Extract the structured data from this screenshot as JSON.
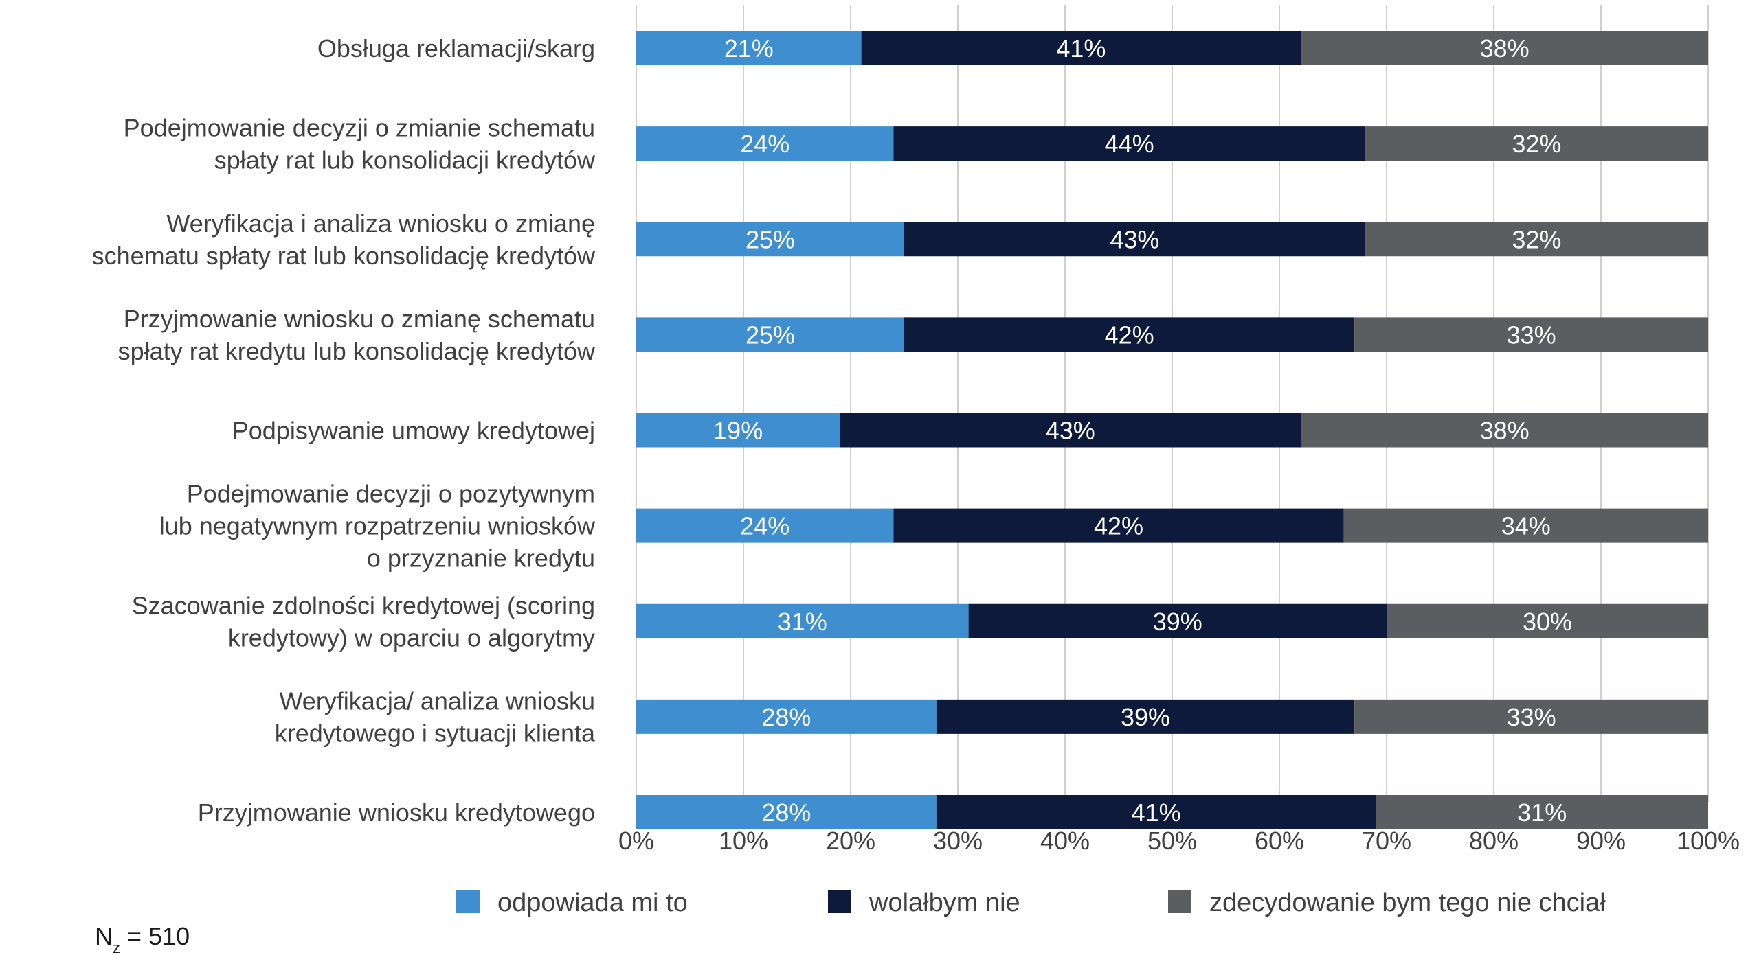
{
  "chart_data": {
    "type": "bar",
    "orientation": "horizontal",
    "stacked": true,
    "categories": [
      "Obsługa reklamacji/skarg",
      "Podejmowanie decyzji o zmianie schematu spłaty rat lub konsolidacji kredytów",
      "Weryfikacja i analiza wniosku o zmianę schematu spłaty rat lub konsolidację kredytów",
      "Przyjmowanie wniosku o zmianę schematu spłaty rat kredytu lub konsolidację kredytów",
      "Podpisywanie umowy kredytowej",
      "Podejmowanie decyzji o pozytywnym lub negatywnym rozpatrzeniu wniosków o przyznanie kredytu",
      "Szacowanie zdolności kredytowej (scoring kredytowy) w oparciu o algorytmy",
      "Weryfikacja/ analiza wniosku kredytowego i sytuacji klienta",
      "Przyjmowanie wniosku kredytowego"
    ],
    "category_lines": [
      [
        "Obsługa reklamacji/skarg"
      ],
      [
        "Podejmowanie decyzji o zmianie schematu",
        "spłaty rat lub konsolidacji kredytów"
      ],
      [
        "Weryfikacja i analiza wniosku o zmianę",
        "schematu spłaty rat lub konsolidację kredytów"
      ],
      [
        "Przyjmowanie wniosku o zmianę schematu",
        "spłaty rat kredytu lub konsolidację kredytów"
      ],
      [
        "Podpisywanie umowy kredytowej"
      ],
      [
        "Podejmowanie decyzji o pozytywnym",
        "lub negatywnym rozpatrzeniu wniosków",
        "o przyznanie kredytu"
      ],
      [
        "Szacowanie zdolności kredytowej (scoring",
        "kredytowy) w oparciu o algorytmy"
      ],
      [
        "Weryfikacja/ analiza wniosku",
        "kredytowego i sytuacji klienta"
      ],
      [
        "Przyjmowanie wniosku kredytowego"
      ]
    ],
    "series": [
      {
        "name": "odpowiada mi to",
        "color": "#3f8fd0",
        "values": [
          21,
          24,
          25,
          25,
          19,
          24,
          31,
          28,
          28
        ]
      },
      {
        "name": "wolałbym nie",
        "color": "#0d1a3b",
        "values": [
          41,
          44,
          43,
          42,
          43,
          42,
          39,
          39,
          41
        ]
      },
      {
        "name": "zdecydowanie bym tego nie chciał",
        "color": "#5b5d61",
        "values": [
          38,
          32,
          32,
          33,
          38,
          34,
          30,
          33,
          31
        ]
      }
    ],
    "x_ticks": [
      "0%",
      "10%",
      "20%",
      "30%",
      "40%",
      "50%",
      "60%",
      "70%",
      "80%",
      "90%",
      "100%"
    ],
    "xlim": [
      0,
      100
    ],
    "grid": true,
    "legend_position": "bottom",
    "xlabel": "",
    "ylabel": "",
    "title": ""
  },
  "note": {
    "prefix": "N",
    "subscript": "z",
    "suffix": " = 510"
  }
}
